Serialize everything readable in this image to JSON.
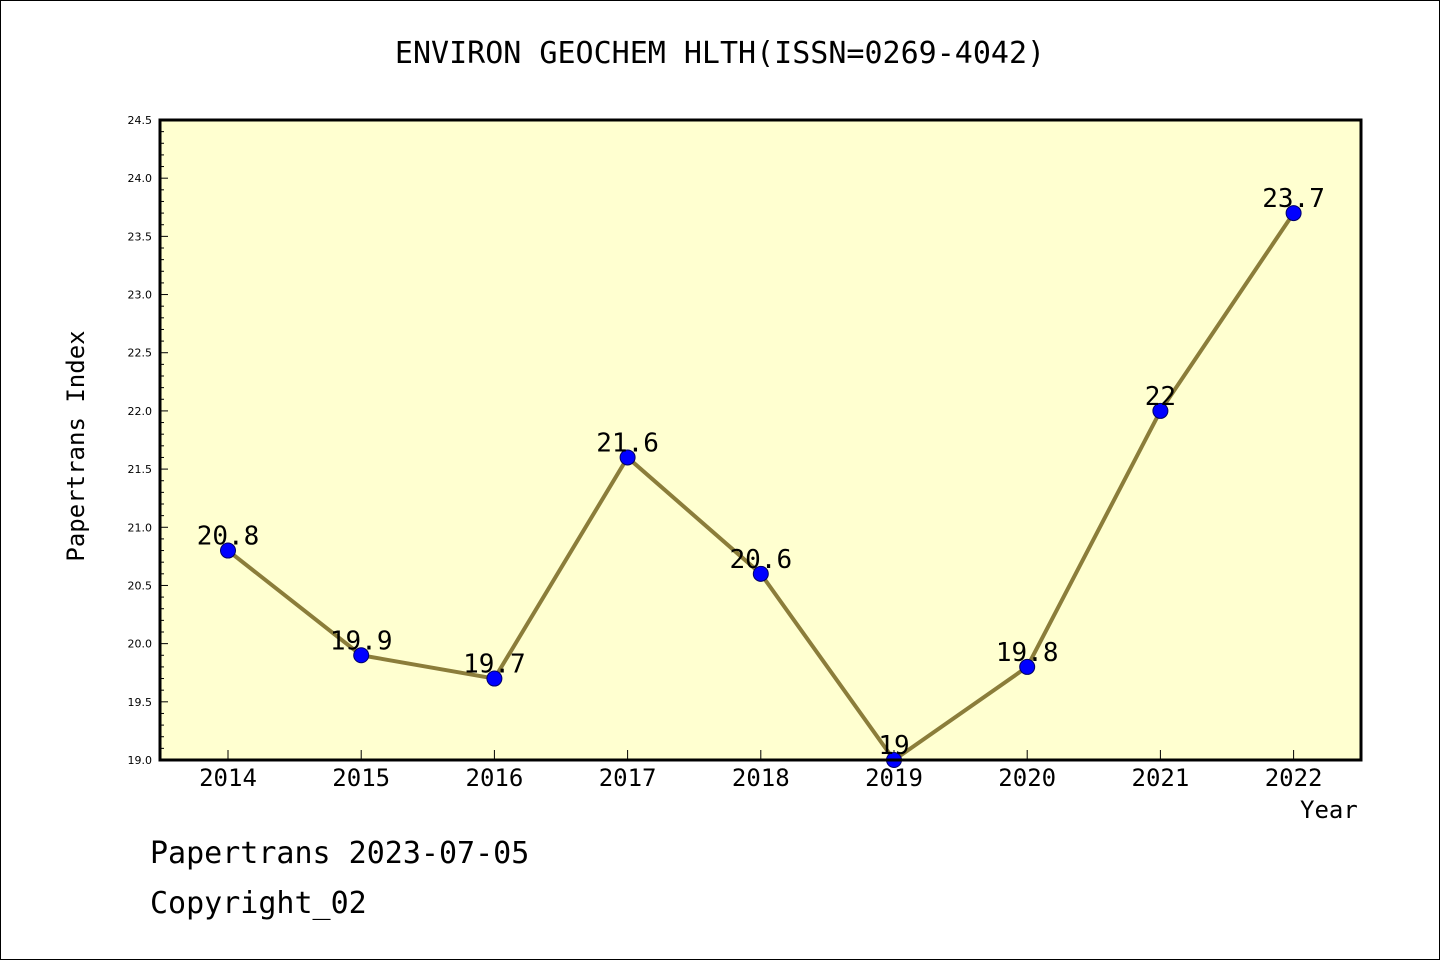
{
  "chart_data": {
    "type": "line",
    "title": "ENVIRON GEOCHEM HLTH(ISSN=0269-4042)",
    "xlabel": "Year",
    "ylabel": "Papertrans Index",
    "x": [
      "2014",
      "2015",
      "2016",
      "2017",
      "2018",
      "2019",
      "2020",
      "2021",
      "2022"
    ],
    "values": [
      20.8,
      19.9,
      19.7,
      21.6,
      20.6,
      19,
      19.8,
      22,
      23.7
    ],
    "data_labels": [
      "20.8",
      "19.9",
      "19.7",
      "21.6",
      "20.6",
      "19",
      "19.8",
      "22",
      "23.7"
    ],
    "ylim": [
      19.0,
      24.5
    ],
    "yticks": [
      "19.0",
      "19.5",
      "20.0",
      "20.5",
      "21.0",
      "21.5",
      "22.0",
      "22.5",
      "23.0",
      "23.5",
      "24.0",
      "24.5"
    ],
    "grid": false,
    "colors": {
      "plot_background": "#ffffd0",
      "line": "#8b7d3a",
      "marker": "#0000ff"
    }
  },
  "footer": {
    "line1": "Papertrans 2023-07-05",
    "line2": "Copyright_02"
  }
}
